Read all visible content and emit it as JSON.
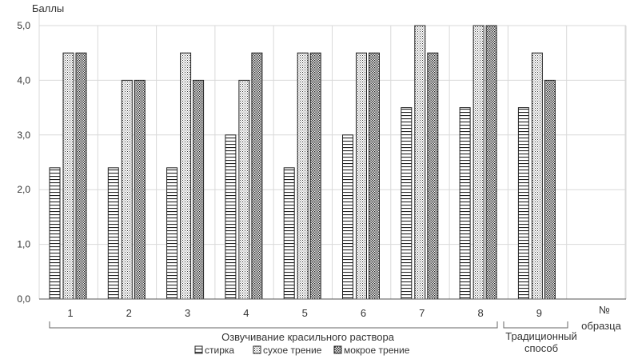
{
  "chart_data": {
    "type": "bar",
    "ylabel": "Баллы",
    "xlabel": "№ образца",
    "ylim": [
      0,
      5
    ],
    "yticks": [
      "0,0",
      "1,0",
      "2,0",
      "3,0",
      "4,0",
      "5,0"
    ],
    "categories": [
      "1",
      "2",
      "3",
      "4",
      "5",
      "6",
      "7",
      "8",
      "9"
    ],
    "series": [
      {
        "name": "стирка",
        "pattern": "horizontal-lines",
        "values": [
          2.4,
          2.4,
          2.4,
          3.0,
          2.4,
          3.0,
          3.5,
          3.5,
          3.5
        ]
      },
      {
        "name": "сухое трение",
        "pattern": "dots",
        "values": [
          4.5,
          4.0,
          4.5,
          4.0,
          4.5,
          4.5,
          5.0,
          5.0,
          4.5
        ]
      },
      {
        "name": "мокрое трение",
        "pattern": "dense-dots",
        "values": [
          4.5,
          4.0,
          4.0,
          4.5,
          4.5,
          4.5,
          4.5,
          5.0,
          4.0
        ]
      }
    ],
    "groups": [
      {
        "label": "Озвучивание красильного раствора",
        "categories": [
          "1",
          "2",
          "3",
          "4",
          "5",
          "6",
          "7",
          "8"
        ]
      },
      {
        "label": "Традиционный способ",
        "categories": [
          "9"
        ]
      }
    ],
    "grid": true,
    "legend": "bottom"
  },
  "colors": {
    "axis": "#555555",
    "grid": "#d9d9d9",
    "bar_stroke": "#222222"
  }
}
